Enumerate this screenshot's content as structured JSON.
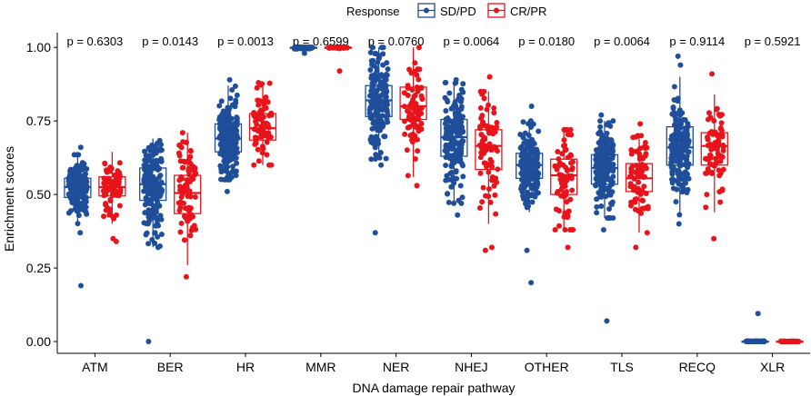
{
  "chart_data": {
    "type": "box",
    "xlabel": "DNA damage repair pathway",
    "ylabel": "Enrichment scores",
    "ylim": [
      -0.04,
      1.05
    ],
    "yticks": [
      0.0,
      0.25,
      0.5,
      0.75,
      1.0
    ],
    "ytick_labels": [
      "0.00",
      "0.25",
      "0.50",
      "0.75",
      "1.00"
    ],
    "legend": {
      "title": "Response",
      "placement": "top",
      "entries": [
        {
          "name": "SD/PD",
          "color": "#1F4E9A"
        },
        {
          "name": "CR/PR",
          "color": "#E8141B"
        }
      ]
    },
    "categories": [
      "ATM",
      "BER",
      "HR",
      "MMR",
      "NER",
      "NHEJ",
      "OTHER",
      "TLS",
      "RECQ",
      "XLR"
    ],
    "p_values": [
      "p = 0.6303",
      "p = 0.0143",
      "p = 0.0013",
      "p = 0.6599",
      "p = 0.0760",
      "p = 0.0064",
      "p = 0.0180",
      "p = 0.0064",
      "p = 0.9114",
      "p = 0.5921"
    ],
    "series": [
      {
        "name": "SD/PD",
        "color": "#1F4E9A",
        "n_points": 180,
        "boxes": [
          {
            "min": 0.4,
            "q1": 0.49,
            "median": 0.525,
            "q3": 0.555,
            "max": 0.635,
            "outliers": [
              0.19,
              0.37,
              0.66
            ]
          },
          {
            "min": 0.32,
            "q1": 0.48,
            "median": 0.535,
            "q3": 0.59,
            "max": 0.69,
            "outliers": [
              0.0
            ]
          },
          {
            "min": 0.55,
            "q1": 0.645,
            "median": 0.69,
            "q3": 0.74,
            "max": 0.87,
            "outliers": [
              0.51,
              0.89
            ]
          },
          {
            "min": 0.995,
            "q1": 0.997,
            "median": 0.999,
            "q3": 1.0,
            "max": 1.0,
            "outliers": [
              0.98
            ]
          },
          {
            "min": 0.62,
            "q1": 0.765,
            "median": 0.82,
            "q3": 0.87,
            "max": 1.0,
            "outliers": [
              0.37,
              0.6
            ]
          },
          {
            "min": 0.47,
            "q1": 0.63,
            "median": 0.695,
            "q3": 0.755,
            "max": 0.88,
            "outliers": [
              0.43,
              0.89
            ]
          },
          {
            "min": 0.44,
            "q1": 0.555,
            "median": 0.6,
            "q3": 0.64,
            "max": 0.75,
            "outliers": [
              0.2,
              0.31,
              0.8
            ]
          },
          {
            "min": 0.42,
            "q1": 0.535,
            "median": 0.59,
            "q3": 0.635,
            "max": 0.75,
            "outliers": [
              0.07,
              0.38,
              0.77
            ]
          },
          {
            "min": 0.43,
            "q1": 0.6,
            "median": 0.66,
            "q3": 0.73,
            "max": 0.9,
            "outliers": [
              0.4,
              0.94,
              0.97
            ]
          },
          {
            "min": 0.0,
            "q1": 0.0,
            "median": 0.0,
            "q3": 0.001,
            "max": 0.002,
            "outliers": [
              0.095
            ]
          }
        ]
      },
      {
        "name": "CR/PR",
        "color": "#E8141B",
        "n_points": 75,
        "boxes": [
          {
            "min": 0.4,
            "q1": 0.495,
            "median": 0.525,
            "q3": 0.56,
            "max": 0.645,
            "outliers": [
              0.34,
              0.35
            ]
          },
          {
            "min": 0.26,
            "q1": 0.435,
            "median": 0.505,
            "q3": 0.565,
            "max": 0.71,
            "outliers": [
              0.22
            ]
          },
          {
            "min": 0.6,
            "q1": 0.685,
            "median": 0.725,
            "q3": 0.775,
            "max": 0.88,
            "outliers": []
          },
          {
            "min": 0.995,
            "q1": 0.998,
            "median": 1.0,
            "q3": 1.0,
            "max": 1.0,
            "outliers": [
              0.92
            ]
          },
          {
            "min": 0.56,
            "q1": 0.755,
            "median": 0.8,
            "q3": 0.865,
            "max": 1.0,
            "outliers": [
              0.53
            ]
          },
          {
            "min": 0.4,
            "q1": 0.585,
            "median": 0.665,
            "q3": 0.72,
            "max": 0.85,
            "outliers": [
              0.31,
              0.32,
              0.9
            ]
          },
          {
            "min": 0.38,
            "q1": 0.5,
            "median": 0.565,
            "q3": 0.62,
            "max": 0.72,
            "outliers": [
              0.32
            ]
          },
          {
            "min": 0.37,
            "q1": 0.51,
            "median": 0.555,
            "q3": 0.605,
            "max": 0.7,
            "outliers": [
              0.32,
              0.74
            ]
          },
          {
            "min": 0.44,
            "q1": 0.6,
            "median": 0.665,
            "q3": 0.71,
            "max": 0.84,
            "outliers": [
              0.35,
              0.91
            ]
          },
          {
            "min": 0.0,
            "q1": 0.0,
            "median": 0.0,
            "q3": 0.001,
            "max": 0.002,
            "outliers": []
          }
        ]
      }
    ]
  }
}
